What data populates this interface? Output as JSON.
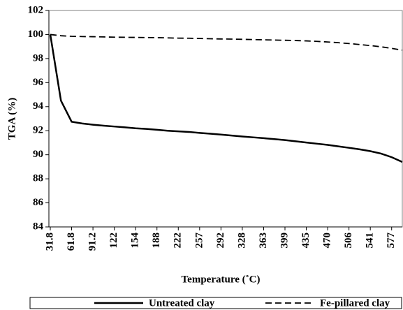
{
  "chart_data": {
    "type": "line",
    "xlabel": "Temperature (˚C)",
    "ylabel": "TGA (%)",
    "categories": [
      "31.8",
      null,
      "61.8",
      null,
      "91.2",
      null,
      "122",
      null,
      "154",
      null,
      "188",
      null,
      "222",
      null,
      "257",
      null,
      "292",
      null,
      "328",
      null,
      "363",
      null,
      "399",
      null,
      "435",
      null,
      "470",
      null,
      "506",
      null,
      "541",
      null,
      "577",
      null
    ],
    "series": [
      {
        "name": "Untreated clay",
        "color": "#000000",
        "dash": "solid",
        "values": [
          100,
          94.5,
          92.75,
          92.6,
          92.5,
          92.42,
          92.35,
          92.28,
          92.2,
          92.15,
          92.08,
          92.0,
          91.95,
          91.9,
          91.82,
          91.75,
          91.68,
          91.6,
          91.52,
          91.45,
          91.38,
          91.3,
          91.22,
          91.12,
          91.02,
          90.92,
          90.82,
          90.7,
          90.58,
          90.45,
          90.3,
          90.1,
          89.8,
          89.4
        ]
      },
      {
        "name": "Fe-pillared clay",
        "color": "#000000",
        "dash": "dashed",
        "values": [
          100,
          99.9,
          99.85,
          99.83,
          99.82,
          99.8,
          99.78,
          99.77,
          99.76,
          99.75,
          99.74,
          99.72,
          99.7,
          99.69,
          99.67,
          99.65,
          99.63,
          99.62,
          99.6,
          99.58,
          99.56,
          99.54,
          99.52,
          99.5,
          99.47,
          99.43,
          99.38,
          99.32,
          99.25,
          99.17,
          99.08,
          98.98,
          98.85,
          98.7
        ]
      }
    ],
    "ylim": [
      84,
      102
    ],
    "yticks": [
      84,
      86,
      88,
      90,
      92,
      94,
      96,
      98,
      100,
      102
    ],
    "legend": "bottom"
  }
}
